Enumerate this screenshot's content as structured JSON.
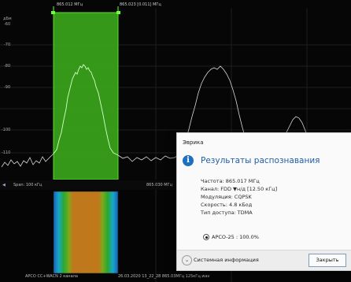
{
  "spectrum": {
    "top_marker_left": "865.012 МГц",
    "top_marker_right": "865.023 [0.011] МГц",
    "y_unit": "дБм",
    "y_ticks": [
      "-60",
      "-70",
      "-80",
      "-90",
      "-100",
      "-110"
    ],
    "span_label": "Span: 100 кГц",
    "center_freq": "865.030 МГц"
  },
  "waterfall": {
    "bottom_left": "APCO CC+WACN 2 канала",
    "bottom_file": "26.03.2020 13_22_28 865.03МГц 125кГц.wav"
  },
  "dialog": {
    "window_title": "Эврика",
    "heading": "Результаты распознавания",
    "lines": [
      "Частота: 865.017 МГц",
      "Канал: FDD ▼н/д [12.50 кГц]",
      "Модуляция: CQPSK",
      "Скорость: 4.8 кБод",
      "Тип доступа: TDMA"
    ],
    "result_option": "APCO-25 : 100.0%",
    "system_info_label": "Системная информация",
    "close_label": "Закрыть"
  },
  "colors": {
    "highlight_band": "#3fbf1c",
    "trace_inside": "#caffc0",
    "trace_outside": "#dcdcdc",
    "dialog_heading": "#1f5fa6"
  }
}
